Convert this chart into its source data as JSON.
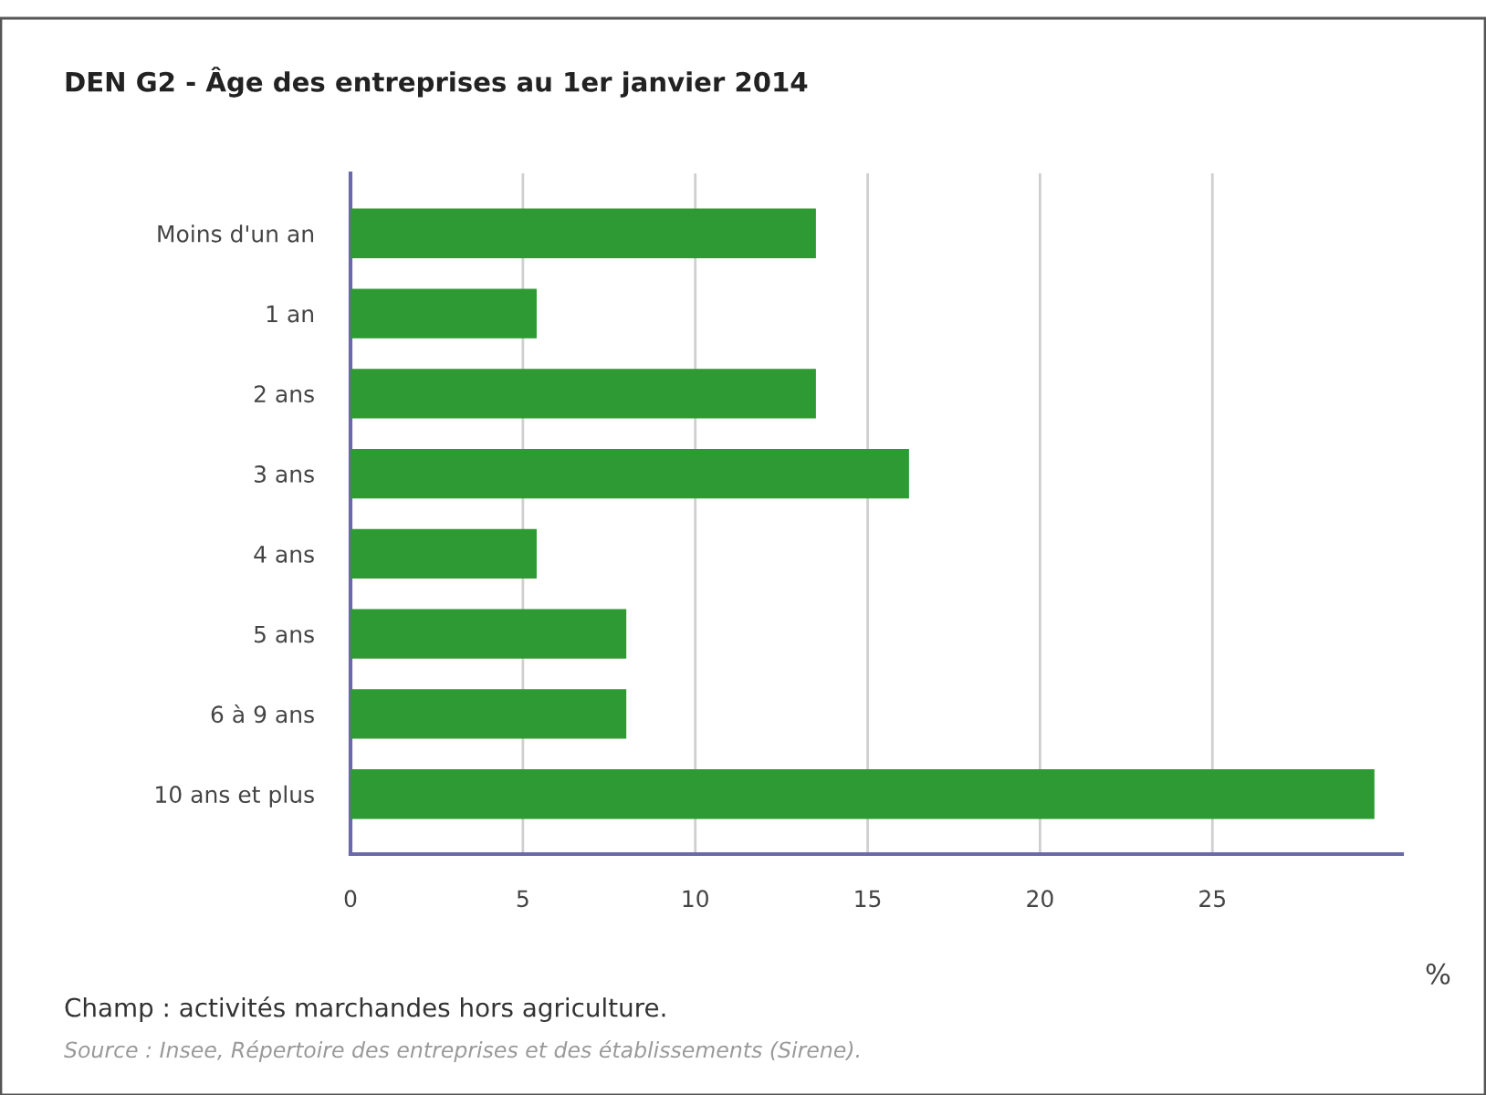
{
  "chart_data": {
    "type": "bar",
    "orientation": "horizontal",
    "title": "DEN G2 - Âge des entreprises au 1er janvier 2014",
    "xlabel": "%",
    "categories": [
      "Moins d'un an",
      "1 an",
      "2 ans",
      "3 ans",
      "4 ans",
      "5 ans",
      "6 à 9 ans",
      "10 ans et plus"
    ],
    "values": [
      13.5,
      5.4,
      13.5,
      16.2,
      5.4,
      8.0,
      8.0,
      29.7
    ],
    "color": "#2e9a33",
    "xlim": [
      0,
      30.5
    ],
    "xticks": [
      0,
      5,
      10,
      15,
      20,
      25
    ],
    "grid": "x",
    "annotations": [
      "Champ : activités marchandes hors agriculture.",
      "Source : Insee, Répertoire des entreprises et des établissements (Sirene)."
    ]
  }
}
